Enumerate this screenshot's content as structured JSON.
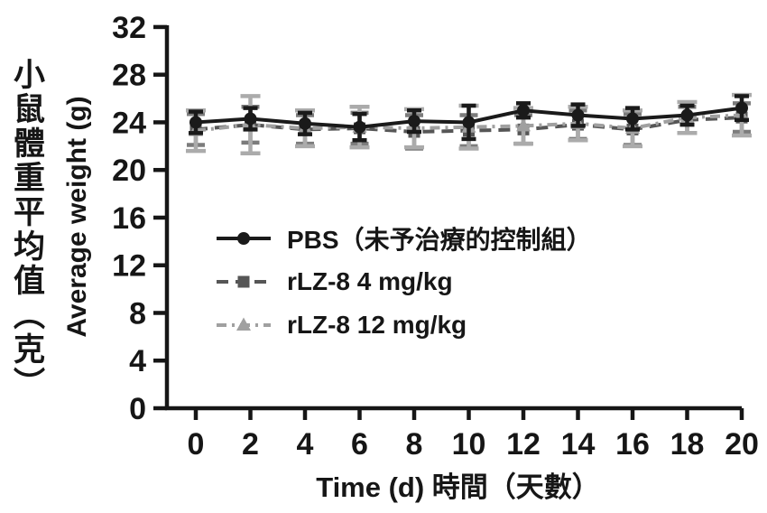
{
  "figure": {
    "y_axis_label_cjk": "小鼠體重平均值（克）",
    "y_axis_label_en": "Average weight (g)",
    "x_axis_label": "Time (d)  時間（天數）"
  },
  "chart_data": {
    "type": "line",
    "title": "",
    "xlabel": "Time (d)  時間（天數）",
    "ylabel": "Average weight (g) / 小鼠體重平均值（克）",
    "xlim": [
      0,
      20
    ],
    "ylim": [
      0,
      32
    ],
    "grid": false,
    "legend_position": "inside-left-middle",
    "axis_color": "#161616",
    "x": [
      0,
      2,
      4,
      6,
      8,
      10,
      12,
      14,
      16,
      18,
      20
    ],
    "x_ticks": [
      "0",
      "2",
      "4",
      "6",
      "8",
      "10",
      "12",
      "14",
      "16",
      "18",
      "20"
    ],
    "y_ticks": [
      "0",
      "4",
      "8",
      "12",
      "16",
      "20",
      "24",
      "28",
      "32"
    ],
    "series": [
      {
        "name": "PBS（未予治療的控制組）",
        "marker": "circle",
        "line_style": "solid",
        "color": "#1a1a1a",
        "error_color": "#1a1a1a",
        "values": [
          24.0,
          24.3,
          23.9,
          23.6,
          24.1,
          24.0,
          25.0,
          24.6,
          24.3,
          24.6,
          25.2
        ],
        "errors": [
          0.9,
          0.9,
          0.9,
          1.1,
          0.9,
          1.4,
          0.6,
          0.9,
          0.9,
          0.8,
          1.0
        ]
      },
      {
        "name": "rLZ-8 4 mg/kg",
        "marker": "square",
        "line_style": "dashed",
        "color": "#565656",
        "error_color": "#7c7c7c",
        "values": [
          23.4,
          23.8,
          23.4,
          23.5,
          23.2,
          23.3,
          23.4,
          23.8,
          23.4,
          24.2,
          24.4
        ],
        "errors": [
          1.3,
          1.5,
          1.2,
          1.3,
          1.4,
          1.3,
          1.2,
          1.2,
          1.3,
          1.1,
          1.2
        ]
      },
      {
        "name": "rLZ-8 12 mg/kg",
        "marker": "triangle",
        "line_style": "dash-dot",
        "color": "#a0a0a0",
        "error_color": "#ababab",
        "values": [
          23.3,
          23.8,
          23.5,
          23.6,
          23.5,
          23.6,
          23.7,
          23.9,
          23.5,
          24.4,
          24.6
        ],
        "errors": [
          1.7,
          2.4,
          1.5,
          1.7,
          1.6,
          1.8,
          1.5,
          1.4,
          1.5,
          1.3,
          1.7
        ]
      }
    ]
  }
}
